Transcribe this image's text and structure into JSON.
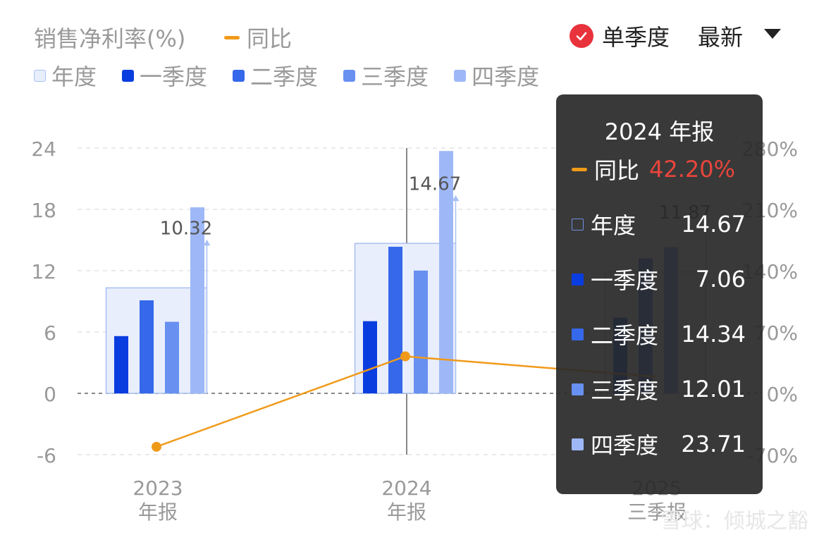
{
  "header": {
    "title": "销售净利率(%)",
    "yoy_label": "同比",
    "mode_label": "单季度",
    "sort_label": "最新"
  },
  "legend": [
    {
      "label": "年度",
      "color": "#e6ecfb"
    },
    {
      "label": "一季度",
      "color": "#0a3de0"
    },
    {
      "label": "二季度",
      "color": "#3568ea"
    },
    {
      "label": "三季度",
      "color": "#6890f0"
    },
    {
      "label": "四季度",
      "color": "#9eb8f7"
    }
  ],
  "colors": {
    "yoy_line": "#f09a1a",
    "annual_fill": "#e8eefc",
    "annual_stroke": "#a9c0f3",
    "q1": "#0a3de0",
    "q2": "#3568ea",
    "q3": "#6890f0",
    "q4": "#9eb8f7",
    "yoy_value": "#e8453c"
  },
  "chart_data": {
    "type": "bar",
    "categories": [
      [
        "2023",
        "年报"
      ],
      [
        "2024",
        "年报"
      ],
      [
        "2025",
        "三季报"
      ]
    ],
    "ylim_left": [
      -6,
      24
    ],
    "yticks_left": [
      -6,
      0,
      6,
      12,
      18,
      24
    ],
    "ylim_right": [
      -70,
      280
    ],
    "yticks_right_labels": [
      "-70%",
      "0%",
      "70%",
      "140%",
      "210%",
      "280%"
    ],
    "annual": [
      10.32,
      14.67,
      11.87
    ],
    "annual_labels": [
      "10.32",
      "14.67",
      "11.87"
    ],
    "series": [
      {
        "name": "一季度",
        "values": [
          5.6,
          7.06,
          7.4
        ]
      },
      {
        "name": "二季度",
        "values": [
          9.1,
          14.34,
          13.2
        ]
      },
      {
        "name": "三季度",
        "values": [
          7.0,
          12.01,
          14.3
        ]
      },
      {
        "name": "四季度",
        "values": [
          18.2,
          23.71,
          null
        ]
      }
    ],
    "yoy": {
      "name": "同比",
      "values": [
        -61,
        42.2,
        19
      ]
    },
    "highlight_index": 1
  },
  "tooltip": {
    "title": "2024 年报",
    "rows": [
      {
        "label": "同比",
        "value": "42.20%",
        "kind": "line"
      },
      {
        "label": "年度",
        "value": "14.67",
        "kind": "annual"
      },
      {
        "label": "一季度",
        "value": "7.06",
        "kind": "q1"
      },
      {
        "label": "二季度",
        "value": "14.34",
        "kind": "q2"
      },
      {
        "label": "三季度",
        "value": "12.01",
        "kind": "q3"
      },
      {
        "label": "四季度",
        "value": "23.71",
        "kind": "q4"
      }
    ]
  },
  "watermark": "雪球：倾城之豁"
}
